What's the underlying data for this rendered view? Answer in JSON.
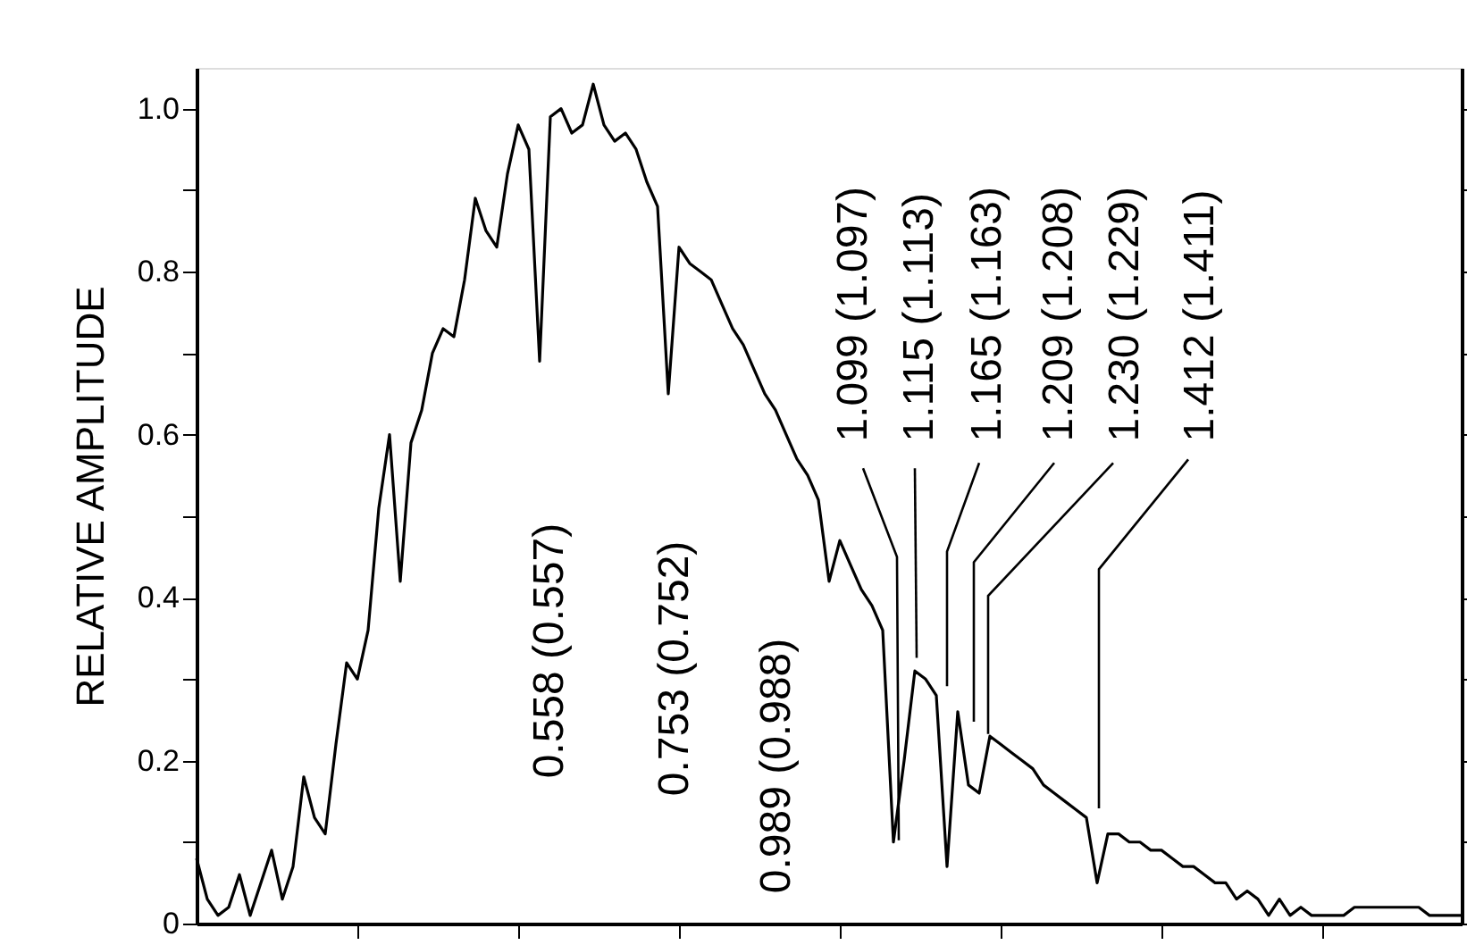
{
  "chart_data": {
    "type": "line",
    "ylabel": "RELATIVE AMPLITUDE",
    "categories": [
      null,
      null,
      null,
      null,
      null,
      null,
      null,
      null,
      null,
      null,
      null,
      null,
      null,
      null,
      null,
      null,
      null,
      null,
      null,
      null,
      null,
      null,
      null,
      null,
      null,
      null,
      null,
      null,
      null,
      null,
      null,
      null,
      null,
      null,
      null,
      null,
      null,
      null,
      null,
      null,
      null,
      null,
      null,
      null,
      null,
      null,
      null,
      null,
      null,
      null,
      null,
      null,
      null,
      null,
      null,
      null,
      null,
      null,
      null,
      null,
      null,
      null,
      null,
      null,
      null,
      null,
      null,
      null,
      null,
      null,
      null,
      null,
      null,
      null,
      null,
      null,
      null,
      null,
      null,
      null,
      null,
      null,
      null,
      null,
      null,
      null,
      null,
      null,
      null,
      null,
      null,
      null,
      null,
      null,
      null,
      null,
      null,
      null,
      null,
      null,
      null,
      null,
      null,
      null,
      null,
      null,
      null,
      null,
      null,
      null,
      null,
      null,
      null,
      null,
      null,
      null,
      null,
      null,
      null
    ],
    "series": [
      {
        "color": "#000000",
        "values": [
          0.08,
          0.03,
          0.01,
          0.02,
          0.06,
          0.01,
          0.05,
          0.09,
          0.03,
          0.07,
          0.18,
          0.13,
          0.11,
          0.22,
          0.32,
          0.3,
          0.36,
          0.51,
          0.6,
          0.42,
          0.59,
          0.63,
          0.7,
          0.73,
          0.72,
          0.79,
          0.89,
          0.85,
          0.83,
          0.92,
          0.98,
          0.95,
          0.69,
          0.99,
          1.0,
          0.97,
          0.98,
          1.03,
          0.98,
          0.96,
          0.97,
          0.95,
          0.91,
          0.88,
          0.65,
          0.83,
          0.81,
          0.8,
          0.79,
          0.76,
          0.73,
          0.71,
          0.68,
          0.65,
          0.63,
          0.6,
          0.57,
          0.55,
          0.52,
          0.42,
          0.47,
          0.44,
          0.41,
          0.39,
          0.36,
          0.1,
          0.2,
          0.31,
          0.3,
          0.28,
          0.07,
          0.26,
          0.17,
          0.16,
          0.23,
          0.22,
          0.21,
          0.2,
          0.19,
          0.17,
          0.16,
          0.15,
          0.14,
          0.13,
          0.05,
          0.11,
          0.11,
          0.1,
          0.1,
          0.09,
          0.09,
          0.08,
          0.07,
          0.07,
          0.06,
          0.05,
          0.05,
          0.03,
          0.04,
          0.03,
          0.01,
          0.03,
          0.01,
          0.02,
          0.01,
          0.01,
          0.01,
          0.01,
          0.02,
          0.02,
          0.02,
          0.02,
          0.02,
          0.02,
          0.02,
          0.01,
          0.01,
          0.01,
          0.01
        ]
      }
    ],
    "ylim": [
      0,
      1.05
    ],
    "yticks": [
      0,
      {
        "value": 0.1,
        "label": null
      },
      0.2,
      {
        "value": 0.3,
        "label": null
      },
      0.4,
      {
        "value": 0.5,
        "label": null
      },
      0.6,
      {
        "value": 0.7,
        "label": null
      },
      0.8,
      {
        "value": 0.9,
        "label": null
      },
      "1.0"
    ],
    "annotations": [
      "0.558 (0.557)",
      "0.753 (0.752)",
      "0.989 (0.988)",
      "1.099 (1.097)",
      "1.115 (1.113)",
      "1.165 (1.163)",
      "1.209 (1.208)",
      "1.230 (1.229)",
      "1.412 (1.411)"
    ],
    "tick_labels": "y",
    "grid": false,
    "legend": false,
    "marker": "none",
    "line_style": "solid"
  }
}
